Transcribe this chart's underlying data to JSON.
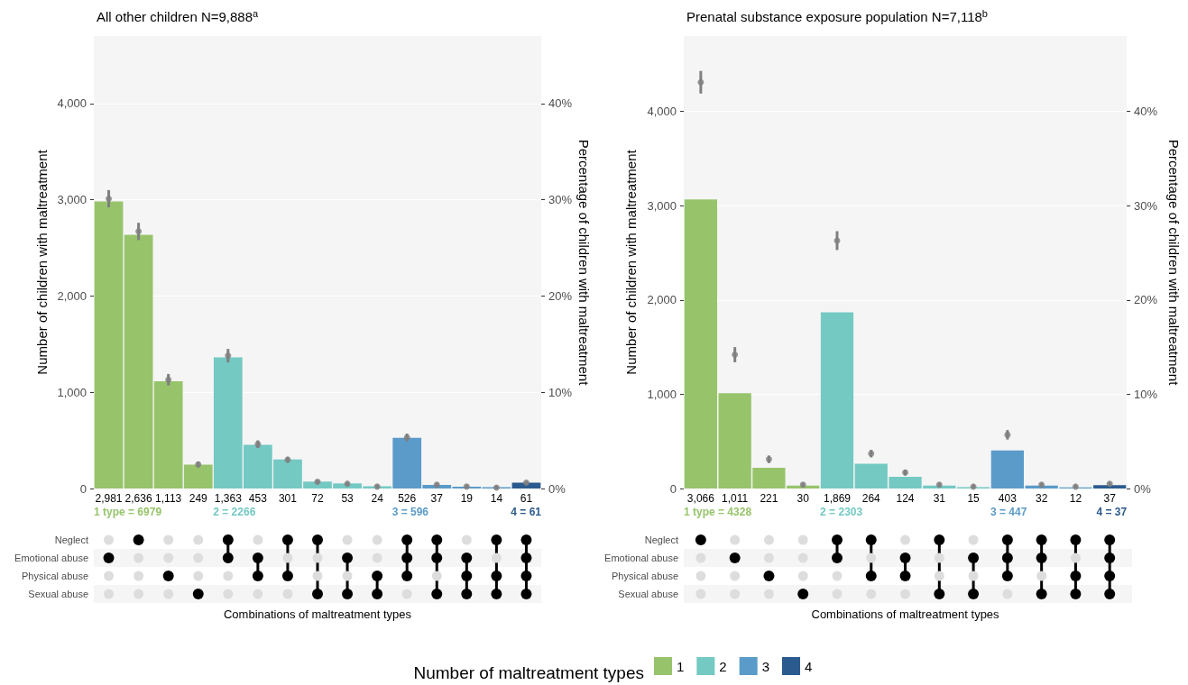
{
  "chart_data": [
    {
      "type": "bar",
      "title": "All other children N=9,888$^{a}$",
      "ylabel": "Number of children with maltreatment",
      "y2label": "Percentage of children with maltreatment",
      "xlabel": "Combinations of maltreatment types",
      "categories": [
        null,
        null,
        null,
        null,
        null,
        null,
        null,
        null,
        null,
        null,
        null,
        null,
        null,
        null,
        null
      ],
      "series": [
        {
          "name": "1",
          "color": "#97c46b",
          "values": [
            2981,
            2636,
            1113,
            249,
            null,
            null,
            null,
            null,
            null,
            null,
            null,
            null,
            null,
            null,
            null
          ],
          "value_labels": [
            "2,981",
            "2,636",
            "1,113",
            "249",
            null,
            null,
            null,
            null,
            null,
            null,
            null,
            null,
            null,
            null,
            null
          ]
        },
        {
          "name": "2",
          "color": "#74c9c3",
          "values": [
            null,
            null,
            null,
            null,
            1363,
            453,
            301,
            72,
            53,
            24,
            null,
            null,
            null,
            null,
            null
          ],
          "value_labels": [
            null,
            null,
            null,
            null,
            "1,363",
            "453",
            "301",
            "72",
            "53",
            "24",
            null,
            null,
            null,
            null,
            null
          ]
        },
        {
          "name": "3",
          "color": "#5a9bc9",
          "values": [
            null,
            null,
            null,
            null,
            null,
            null,
            null,
            null,
            null,
            null,
            526,
            37,
            19,
            14,
            null
          ],
          "value_labels": [
            null,
            null,
            null,
            null,
            null,
            null,
            null,
            null,
            null,
            null,
            "526",
            "37",
            "19",
            "14",
            null
          ]
        },
        {
          "name": "4",
          "color": "#2b5a8f",
          "values": [
            null,
            null,
            null,
            null,
            null,
            null,
            null,
            null,
            null,
            null,
            null,
            null,
            null,
            null,
            61
          ],
          "value_labels": [
            null,
            null,
            null,
            null,
            null,
            null,
            null,
            null,
            null,
            null,
            null,
            null,
            null,
            null,
            "61"
          ]
        },
        {
          "type": "scatter",
          "axis": "y2",
          "color": "#7f7f7f",
          "values": [
            30.1,
            26.7,
            11.3,
            2.5,
            13.8,
            4.6,
            3.0,
            0.7,
            0.5,
            0.2,
            5.3,
            0.4,
            0.2,
            0.1,
            0.6
          ],
          "errors": [
            0.9,
            0.9,
            0.6,
            0.3,
            0.7,
            0.4,
            0.3,
            0.2,
            0.2,
            0.2,
            0.4,
            0.2,
            0.2,
            0.2,
            0.2
          ]
        }
      ],
      "ylim": [
        0,
        4700
      ],
      "yticks": [
        {
          "value": 0,
          "label": "0"
        },
        {
          "value": 1000,
          "label": "1,000"
        },
        {
          "value": 2000,
          "label": "2,000"
        },
        {
          "value": 3000,
          "label": "3,000"
        },
        {
          "value": 4000,
          "label": "4,000"
        }
      ],
      "y2lim": [
        0,
        47
      ],
      "y2ticks": [
        {
          "value": 0,
          "label": "0%"
        },
        {
          "value": 10,
          "label": "10%"
        },
        {
          "value": 20,
          "label": "20%"
        },
        {
          "value": 30,
          "label": "30%"
        },
        {
          "value": 40,
          "label": "40%"
        }
      ],
      "grid": "y",
      "marker": "circle",
      "legend": "bottom",
      "legend_title": "Number of maltreatment types",
      "annotations": [
        "1 type = 6979",
        "2 = 2266",
        "3 = 596",
        "4 = 61",
        "Neglect",
        "Emotional abuse",
        "Physical abuse",
        "Sexual abuse"
      ]
    },
    {
      "type": "bar",
      "title": "Prenatal substance exposure population N=7,118$^{b}$",
      "ylabel": "Number of children with maltreatment",
      "y2label": "Percentage of children with maltreatment",
      "xlabel": "Combinations of maltreatment types",
      "categories": [
        null,
        null,
        null,
        null,
        null,
        null,
        null,
        null,
        null,
        null,
        null,
        null,
        null
      ],
      "series": [
        {
          "color": "#97c46b",
          "values": [
            3066,
            1011,
            221,
            30,
            null,
            null,
            null,
            null,
            null,
            null,
            null,
            null,
            null
          ],
          "value_labels": [
            "3,066",
            "1,011",
            "221",
            "30",
            null,
            null,
            null,
            null,
            null,
            null,
            null,
            null,
            null
          ]
        },
        {
          "color": "#74c9c3",
          "values": [
            null,
            null,
            null,
            null,
            1869,
            264,
            124,
            31,
            15,
            null,
            null,
            null,
            null
          ],
          "value_labels": [
            null,
            null,
            null,
            null,
            "1,869",
            "264",
            "124",
            "31",
            "15",
            null,
            null,
            null,
            null
          ]
        },
        {
          "color": "#5a9bc9",
          "values": [
            null,
            null,
            null,
            null,
            null,
            null,
            null,
            null,
            null,
            403,
            32,
            12,
            null
          ],
          "value_labels": [
            null,
            null,
            null,
            null,
            null,
            null,
            null,
            null,
            null,
            "403",
            "32",
            "12",
            null
          ]
        },
        {
          "color": "#2b5a8f",
          "values": [
            null,
            null,
            null,
            null,
            null,
            null,
            null,
            null,
            null,
            null,
            null,
            null,
            37
          ],
          "value_labels": [
            null,
            null,
            null,
            null,
            null,
            null,
            null,
            null,
            null,
            null,
            null,
            null,
            "37"
          ]
        },
        {
          "type": "scatter",
          "axis": "y2",
          "color": "#7f7f7f",
          "values": [
            43.1,
            14.2,
            3.1,
            0.4,
            26.3,
            3.7,
            1.7,
            0.4,
            0.2,
            5.7,
            0.4,
            0.2,
            0.5
          ],
          "errors": [
            1.2,
            0.8,
            0.4,
            0.2,
            1.0,
            0.4,
            0.3,
            0.2,
            0.2,
            0.5,
            0.2,
            0.2,
            0.2
          ]
        }
      ],
      "ylim": [
        0,
        4800
      ],
      "yticks": [
        {
          "value": 0,
          "label": "0"
        },
        {
          "value": 1000,
          "label": "1,000"
        },
        {
          "value": 2000,
          "label": "2,000"
        },
        {
          "value": 3000,
          "label": "3,000"
        },
        {
          "value": 4000,
          "label": "4,000"
        }
      ],
      "y2lim": [
        0,
        48
      ],
      "y2ticks": [
        {
          "value": 0,
          "label": "0%"
        },
        {
          "value": 10,
          "label": "10%"
        },
        {
          "value": 20,
          "label": "20%"
        },
        {
          "value": 30,
          "label": "30%"
        },
        {
          "value": 40,
          "label": "40%"
        }
      ],
      "grid": "y",
      "marker": "circle",
      "annotations": [
        "1 type = 4328",
        "2 = 2303",
        "3 = 447",
        "4 = 37",
        "Neglect",
        "Emotional abuse",
        "Physical abuse",
        "Sexual abuse"
      ]
    }
  ]
}
